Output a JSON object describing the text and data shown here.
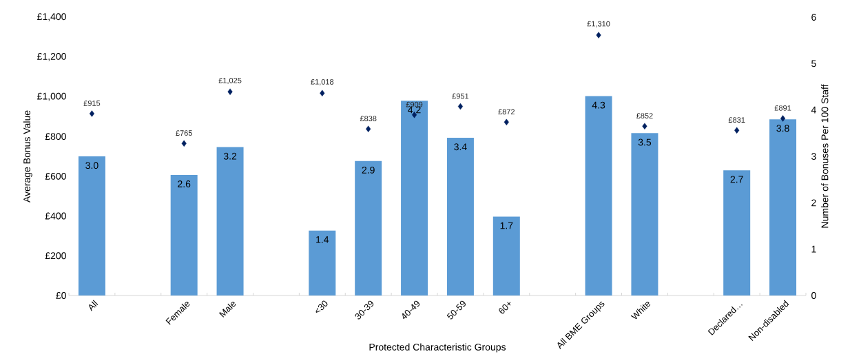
{
  "chart_data": {
    "type": "bar",
    "xlabel": "Protected Characteristic Groups",
    "ylabel": "Average Bonus Value",
    "y2label": "Number of Bonuses Per 100 Staff",
    "categories": [
      "All",
      null,
      "Female",
      "Male",
      null,
      "<30",
      "30-39",
      "40-49",
      "50-59",
      "60+",
      null,
      "All BME Groups",
      "White",
      null,
      "Declared…",
      "Non-disabled"
    ],
    "ylim": [
      0,
      1400
    ],
    "yticks": [
      {
        "value": 0,
        "label": "£0"
      },
      {
        "value": 200,
        "label": "£200"
      },
      {
        "value": 400,
        "label": "£400"
      },
      {
        "value": 600,
        "label": "£600"
      },
      {
        "value": 800,
        "label": "£800"
      },
      {
        "value": 1000,
        "label": "£1,000"
      },
      {
        "value": 1200,
        "label": "£1,200"
      },
      {
        "value": 1400,
        "label": "£1,400"
      }
    ],
    "y2lim": [
      0,
      6
    ],
    "y2ticks": [
      0,
      1,
      2,
      3,
      4,
      5,
      6
    ],
    "series": [
      {
        "axis": "y2",
        "color": "#5b9bd5",
        "values": [
          3.0,
          null,
          2.6,
          3.2,
          null,
          1.4,
          2.9,
          4.2,
          3.4,
          1.7,
          null,
          4.3,
          3.5,
          null,
          2.7,
          3.8
        ],
        "value_labels": [
          "3.0",
          null,
          "2.6",
          "3.2",
          null,
          "1.4",
          "2.9",
          "4.2",
          "3.4",
          "1.7",
          null,
          "4.3",
          "3.5",
          null,
          "2.7",
          "3.8"
        ]
      },
      {
        "type": "scatter",
        "marker": "diamond",
        "color": "#002060",
        "values": [
          915,
          null,
          765,
          1025,
          null,
          1018,
          838,
          909,
          951,
          872,
          null,
          1310,
          852,
          null,
          831,
          891
        ],
        "value_labels": [
          "£915",
          null,
          "£765",
          "£1,025",
          null,
          "£1,018",
          "£838",
          "£909",
          "£951",
          "£872",
          null,
          "£1,310",
          "£852",
          null,
          "£831",
          "£891"
        ]
      }
    ]
  }
}
